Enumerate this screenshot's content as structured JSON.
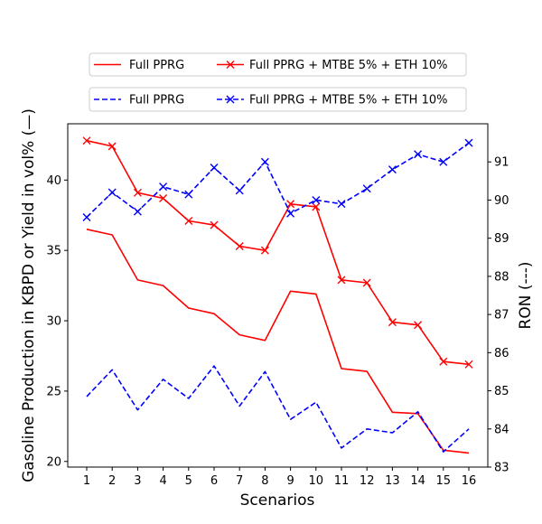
{
  "chart_data": {
    "type": "line",
    "xlabel": "Scenarios",
    "ylabel_left": "Gasoline Production in KBPD or Yield in vol% (—)",
    "ylabel_right": "RON (---)",
    "x": [
      1,
      2,
      3,
      4,
      5,
      6,
      7,
      8,
      9,
      10,
      11,
      12,
      13,
      14,
      15,
      16
    ],
    "x_ticks": [
      "1",
      "2",
      "3",
      "4",
      "5",
      "6",
      "7",
      "8",
      "9",
      "10",
      "11",
      "12",
      "13",
      "14",
      "15",
      "16"
    ],
    "ylim_left": [
      19.6,
      44.0
    ],
    "ylim_right": [
      83.0,
      92.0
    ],
    "yticks_left": [
      "20",
      "25",
      "30",
      "35",
      "40"
    ],
    "yticks_right": [
      "83",
      "84",
      "85",
      "86",
      "87",
      "88",
      "89",
      "90",
      "91"
    ],
    "legends": [
      {
        "position": "top-center",
        "entries": [
          {
            "label": "Full PPRG",
            "series_ref": 0
          },
          {
            "label": "Full PPRG + MTBE 5% + ETH 10%",
            "series_ref": 1
          }
        ]
      },
      {
        "position": "top-center",
        "entries": [
          {
            "label": "Full PPRG",
            "series_ref": 2
          },
          {
            "label": "Full PPRG + MTBE 5% + ETH 10%",
            "series_ref": 3
          }
        ]
      }
    ],
    "series": [
      {
        "name": "Full PPRG",
        "axis": "left",
        "color": "#ff0000",
        "style": "solid",
        "marker": "none",
        "values": [
          36.5,
          36.1,
          32.9,
          32.5,
          30.9,
          30.5,
          29.0,
          28.6,
          32.1,
          31.9,
          26.6,
          26.4,
          23.5,
          23.4,
          20.8,
          20.6
        ]
      },
      {
        "name": "Full PPRG + MTBE 5% + ETH 10%",
        "axis": "left",
        "color": "#ff0000",
        "style": "solid",
        "marker": "x",
        "values": [
          42.8,
          42.4,
          39.1,
          38.7,
          37.1,
          36.8,
          35.3,
          35.0,
          38.3,
          38.1,
          32.9,
          32.7,
          29.9,
          29.7,
          27.1,
          26.9
        ]
      },
      {
        "name": "Full PPRG",
        "axis": "right",
        "color": "#0000ff",
        "style": "dashed",
        "marker": "none",
        "values": [
          84.85,
          85.55,
          84.5,
          85.3,
          84.8,
          85.65,
          84.6,
          85.5,
          84.25,
          84.7,
          83.5,
          84.0,
          83.9,
          84.45,
          83.4,
          84.0
        ]
      },
      {
        "name": "Full PPRG + MTBE 5% + ETH 10%",
        "axis": "right",
        "color": "#0000ff",
        "style": "dashed",
        "marker": "x",
        "values": [
          89.55,
          90.2,
          89.7,
          90.35,
          90.15,
          90.85,
          90.25,
          91.0,
          89.65,
          90.0,
          89.9,
          90.3,
          90.8,
          91.2,
          91.0,
          91.5
        ]
      }
    ]
  }
}
